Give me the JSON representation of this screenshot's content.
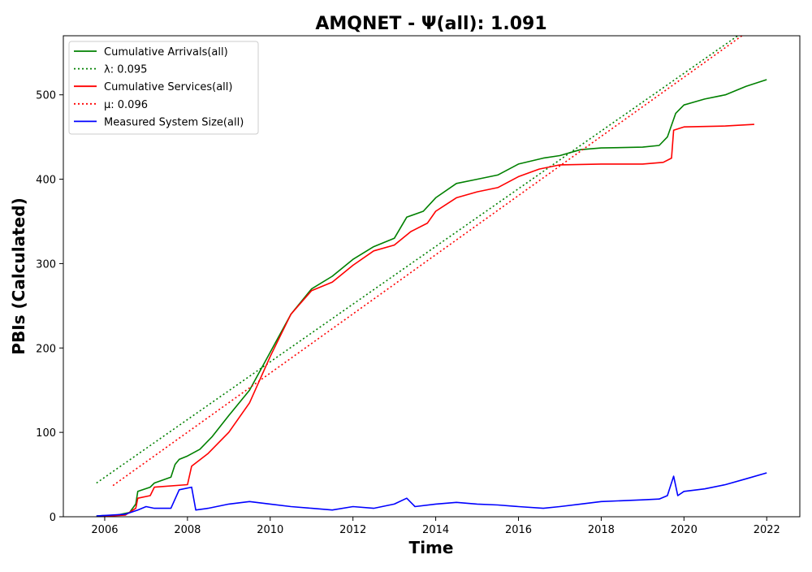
{
  "chart_data": {
    "type": "line",
    "title": "AMQNET -  Ψ(all): 1.091",
    "xlabel": "Time",
    "ylabel": "PBIs (Calculated)",
    "xlim": [
      2005.0,
      2022.8
    ],
    "ylim": [
      0,
      570
    ],
    "x_ticks": [
      2006,
      2008,
      2010,
      2012,
      2014,
      2016,
      2018,
      2020,
      2022
    ],
    "y_ticks": [
      0,
      100,
      200,
      300,
      400,
      500
    ],
    "grid": false,
    "legend_position": "upper-left",
    "series": [
      {
        "name": "Cumulative Arrivals(all)",
        "color": "#008000",
        "style": "solid",
        "x": [
          2005.8,
          2006.3,
          2006.6,
          2006.75,
          2006.8,
          2007.1,
          2007.2,
          2007.6,
          2007.7,
          2007.8,
          2008.0,
          2008.3,
          2008.6,
          2009.0,
          2009.5,
          2010.0,
          2010.5,
          2011.0,
          2011.5,
          2012.0,
          2012.5,
          2013.0,
          2013.3,
          2013.7,
          2014.0,
          2014.5,
          2015.0,
          2015.5,
          2016.0,
          2016.6,
          2017.0,
          2017.5,
          2018.0,
          2019.0,
          2019.4,
          2019.6,
          2019.8,
          2020.0,
          2020.5,
          2021.0,
          2021.5,
          2022.0
        ],
        "values": [
          1,
          2,
          5,
          15,
          30,
          35,
          40,
          47,
          62,
          68,
          72,
          80,
          95,
          120,
          150,
          195,
          240,
          270,
          285,
          305,
          320,
          330,
          355,
          362,
          378,
          395,
          400,
          405,
          418,
          425,
          428,
          435,
          437,
          438,
          440,
          450,
          478,
          488,
          495,
          500,
          510,
          518
        ]
      },
      {
        "name": "λ: 0.095",
        "color": "#008000",
        "style": "dotted",
        "x": [
          2005.8,
          2021.3
        ],
        "values": [
          40,
          570
        ]
      },
      {
        "name": "Cumulative Services(all)",
        "color": "#ff0000",
        "style": "solid",
        "x": [
          2005.8,
          2006.5,
          2006.75,
          2006.8,
          2007.1,
          2007.2,
          2008.0,
          2008.1,
          2008.5,
          2009.0,
          2009.5,
          2010.0,
          2010.5,
          2011.0,
          2011.5,
          2012.0,
          2012.5,
          2013.0,
          2013.4,
          2013.8,
          2014.0,
          2014.5,
          2015.0,
          2015.5,
          2016.0,
          2016.5,
          2017.0,
          2018.0,
          2019.0,
          2019.5,
          2019.7,
          2019.75,
          2020.0,
          2021.0,
          2021.7
        ],
        "values": [
          0,
          2,
          10,
          22,
          25,
          35,
          38,
          60,
          75,
          100,
          135,
          190,
          240,
          268,
          278,
          298,
          315,
          322,
          338,
          348,
          362,
          378,
          385,
          390,
          403,
          412,
          417,
          418,
          418,
          420,
          425,
          458,
          462,
          463,
          465
        ]
      },
      {
        "name": "μ: 0.096",
        "color": "#ff0000",
        "style": "dotted",
        "x": [
          2006.2,
          2021.4
        ],
        "values": [
          37,
          570
        ]
      },
      {
        "name": "Measured System Size(all)",
        "color": "#0000ff",
        "style": "solid",
        "x": [
          2005.8,
          2006.5,
          2006.8,
          2007.0,
          2007.2,
          2007.6,
          2007.8,
          2008.1,
          2008.2,
          2008.5,
          2009.0,
          2009.5,
          2010.0,
          2010.5,
          2011.0,
          2011.5,
          2012.0,
          2012.5,
          2013.0,
          2013.3,
          2013.5,
          2014.0,
          2014.5,
          2015.0,
          2015.5,
          2016.0,
          2016.6,
          2017.0,
          2017.5,
          2018.0,
          2019.0,
          2019.4,
          2019.6,
          2019.75,
          2019.85,
          2020.0,
          2020.5,
          2021.0,
          2021.5,
          2022.0
        ],
        "values": [
          1,
          3,
          8,
          12,
          10,
          10,
          32,
          35,
          8,
          10,
          15,
          18,
          15,
          12,
          10,
          8,
          12,
          10,
          15,
          22,
          12,
          15,
          17,
          15,
          14,
          12,
          10,
          12,
          15,
          18,
          20,
          21,
          25,
          48,
          25,
          30,
          33,
          38,
          45,
          52
        ]
      }
    ]
  }
}
